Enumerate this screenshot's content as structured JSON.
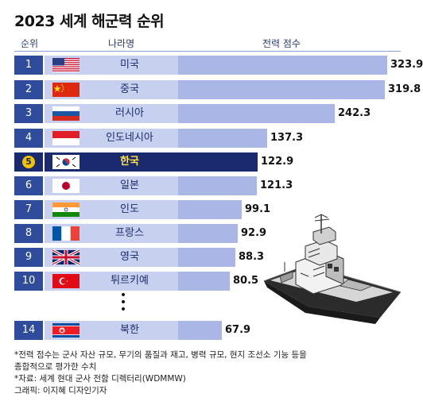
{
  "title": "2023 세계 해군력 순위",
  "headers": {
    "rank": "순위",
    "country": "나라명",
    "score": "전력 점수"
  },
  "chart_data": {
    "type": "bar",
    "orientation": "horizontal",
    "title": "2023 세계 해군력 순위",
    "xlabel": "전력 점수",
    "categories": [
      "미국",
      "중국",
      "러시아",
      "인도네시아",
      "한국",
      "일본",
      "인도",
      "프랑스",
      "영국",
      "튀르키예",
      "북한"
    ],
    "ranks": [
      "1",
      "2",
      "3",
      "4",
      "5",
      "6",
      "7",
      "8",
      "9",
      "10",
      "14"
    ],
    "values": [
      323.9,
      319.8,
      242.3,
      137.3,
      122.9,
      121.3,
      99.1,
      92.9,
      88.3,
      80.5,
      67.9
    ],
    "value_labels": [
      "323.9",
      "319.8",
      "242.3",
      "137.3",
      "122.9",
      "121.3",
      "99.1",
      "92.9",
      "88.3",
      "80.5",
      "67.9"
    ],
    "flags": [
      "us-flag",
      "china-flag",
      "russia-flag",
      "indonesia-flag",
      "korea-flag",
      "japan-flag",
      "india-flag",
      "france-flag",
      "uk-flag",
      "turkey-flag",
      "north-korea-flag"
    ],
    "highlight_index": 4,
    "highlight_color": "#1a2a6e",
    "bar_color": "#aab7e6"
  },
  "notes": {
    "line1": "*전력 점수는 군사 자산 규모, 무기의 품질과 재고, 병력 규모, 현지 조선소 기능 등을",
    "line2": "종합적으로 평가한 수치",
    "line3": "*자료: 세계 현대 군사 전함 디렉터리(WDMMW)",
    "line4": "그래픽: 이지혜 디자인기자"
  }
}
